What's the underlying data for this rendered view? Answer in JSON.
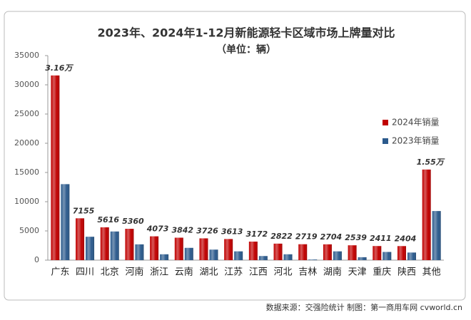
{
  "chart_data": {
    "type": "bar",
    "title": "2023年、2024年1-12月新能源轻卡区域市场上牌量对比",
    "subtitle": "（单位：辆）",
    "source": "数据来源：交强险统计 制图：第一商用车网 cvworld.cn",
    "categories": [
      "广东",
      "四川",
      "北京",
      "河南",
      "浙江",
      "云南",
      "湖北",
      "江苏",
      "江西",
      "河北",
      "吉林",
      "湖南",
      "天津",
      "重庆",
      "陕西",
      "其他"
    ],
    "series": [
      {
        "name": "2024年销量",
        "color": "#c00000",
        "values": [
          31600,
          7155,
          5616,
          5360,
          4073,
          3842,
          3726,
          3613,
          3172,
          2822,
          2719,
          2704,
          2539,
          2411,
          2404,
          15500
        ],
        "value_labels": [
          "3.16万",
          "7155",
          "5616",
          "5360",
          "4073",
          "3842",
          "3726",
          "3613",
          "3172",
          "2822",
          "2719",
          "2704",
          "2539",
          "2411",
          "2404",
          "1.55万"
        ]
      },
      {
        "name": "2023年销量",
        "color": "#2b5a8c",
        "values": [
          13000,
          4000,
          4900,
          2700,
          1000,
          2100,
          1800,
          1500,
          700,
          1000,
          100,
          1500,
          500,
          1400,
          1300,
          8400
        ]
      }
    ],
    "ylim": [
      0,
      35000
    ],
    "yticks": [
      0,
      5000,
      10000,
      15000,
      20000,
      25000,
      30000,
      35000
    ],
    "legend": "right"
  }
}
